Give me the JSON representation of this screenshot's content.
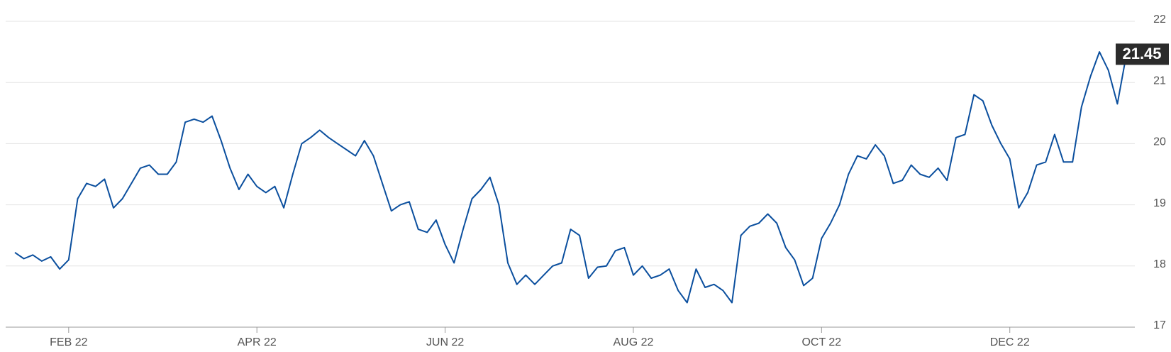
{
  "chart_data": {
    "type": "line",
    "categories": [
      null,
      null,
      null,
      null,
      null,
      null,
      "FEB 22",
      null,
      null,
      null,
      null,
      null,
      null,
      null,
      null,
      null,
      null,
      null,
      null,
      null,
      null,
      null,
      null,
      null,
      null,
      null,
      null,
      "APR 22",
      null,
      null,
      null,
      null,
      null,
      null,
      null,
      null,
      null,
      null,
      null,
      null,
      null,
      null,
      null,
      null,
      null,
      null,
      null,
      null,
      "JUN 22",
      null,
      null,
      null,
      null,
      null,
      null,
      null,
      null,
      null,
      null,
      null,
      null,
      null,
      null,
      null,
      null,
      null,
      null,
      null,
      null,
      "AUG 22",
      null,
      null,
      null,
      null,
      null,
      null,
      null,
      null,
      null,
      null,
      null,
      null,
      null,
      null,
      null,
      null,
      null,
      null,
      null,
      null,
      "OCT 22",
      null,
      null,
      null,
      null,
      null,
      null,
      null,
      null,
      null,
      null,
      null,
      null,
      null,
      null,
      null,
      null,
      null,
      null,
      null,
      null,
      "DEC 22",
      null,
      null,
      null,
      null,
      null,
      null,
      null,
      null,
      null,
      null,
      null,
      null,
      null
    ],
    "series": [
      {
        "color": "#0b4f9e",
        "values": [
          18.22,
          18.12,
          18.18,
          18.08,
          18.15,
          17.95,
          18.1,
          19.1,
          19.35,
          19.3,
          19.42,
          18.95,
          19.1,
          19.35,
          19.6,
          19.65,
          19.5,
          19.5,
          19.7,
          20.35,
          20.4,
          20.35,
          20.45,
          20.05,
          19.6,
          19.25,
          19.5,
          19.3,
          19.2,
          19.3,
          18.95,
          19.5,
          20.0,
          20.1,
          20.22,
          20.1,
          20.0,
          19.9,
          19.8,
          20.05,
          19.8,
          19.35,
          18.9,
          19.0,
          19.05,
          18.6,
          18.55,
          18.75,
          18.35,
          18.05,
          18.6,
          19.1,
          19.25,
          19.45,
          19.0,
          18.05,
          17.7,
          17.85,
          17.7,
          17.85,
          18.0,
          18.05,
          18.6,
          18.5,
          17.8,
          17.98,
          18.0,
          18.25,
          18.3,
          17.85,
          18.0,
          17.8,
          17.85,
          17.95,
          17.6,
          17.4,
          17.95,
          17.65,
          17.7,
          17.6,
          17.4,
          18.5,
          18.65,
          18.7,
          18.85,
          18.7,
          18.3,
          18.1,
          17.68,
          17.8,
          18.45,
          18.7,
          19.0,
          19.5,
          19.8,
          19.75,
          19.98,
          19.8,
          19.35,
          19.4,
          19.65,
          19.5,
          19.45,
          19.6,
          19.4,
          20.1,
          20.15,
          20.8,
          20.7,
          20.3,
          20.0,
          19.75,
          18.95,
          19.2,
          19.65,
          19.7,
          20.15,
          19.7,
          19.7,
          20.6,
          21.1,
          21.5,
          21.2,
          20.65,
          21.45
        ]
      }
    ],
    "ylim": [
      17,
      22
    ],
    "yticks": [
      17,
      18,
      19,
      20,
      21,
      22
    ],
    "grid": true
  }
}
